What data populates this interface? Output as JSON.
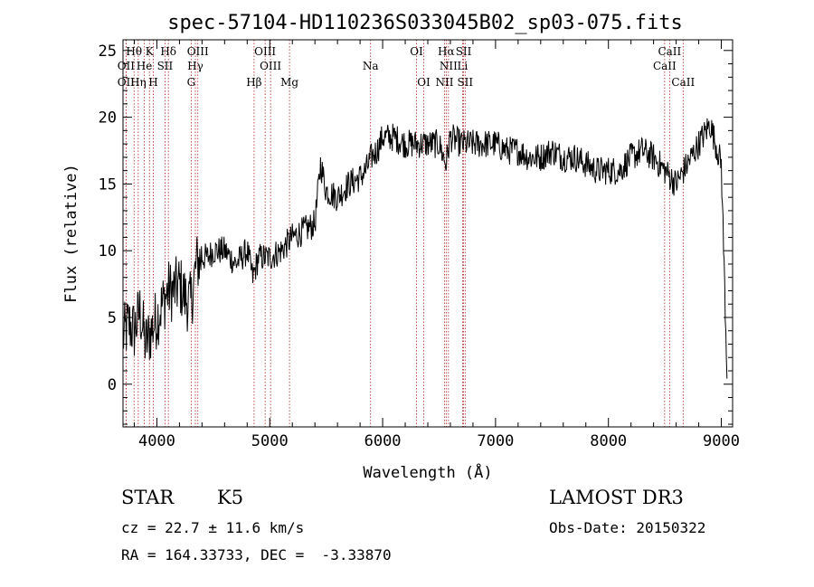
{
  "chart_data": {
    "type": "line",
    "title": "spec-57104-HD110236S033045B02_sp03-075.fits",
    "xlabel": "Wavelength (Å)",
    "ylabel": "Flux (relative)",
    "xlim": [
      3700,
      9100
    ],
    "ylim": [
      -3.2,
      25.8
    ],
    "xticks": [
      4000,
      5000,
      6000,
      7000,
      8000,
      9000
    ],
    "yticks": [
      0,
      5,
      10,
      15,
      20,
      25
    ],
    "series": [
      {
        "name": "spectrum",
        "x": [
          3700,
          3750,
          3800,
          3850,
          3900,
          3950,
          4000,
          4050,
          4100,
          4150,
          4200,
          4250,
          4300,
          4350,
          4400,
          4450,
          4500,
          4600,
          4700,
          4800,
          4850,
          4900,
          5000,
          5100,
          5200,
          5300,
          5400,
          5450,
          5500,
          5600,
          5700,
          5800,
          5850,
          5900,
          5950,
          6000,
          6100,
          6200,
          6300,
          6400,
          6500,
          6560,
          6600,
          6700,
          6800,
          6900,
          7000,
          7100,
          7200,
          7300,
          7400,
          7500,
          7600,
          7700,
          7800,
          7900,
          8000,
          8100,
          8200,
          8300,
          8400,
          8500,
          8600,
          8700,
          8800,
          8900,
          9000,
          9050
        ],
        "y": [
          3.5,
          4.5,
          4.0,
          5.5,
          3.0,
          4.0,
          5.0,
          6.0,
          7.0,
          7.0,
          7.5,
          6.5,
          6.0,
          9.0,
          9.5,
          9.5,
          10.0,
          10.0,
          9.0,
          10.0,
          8.0,
          9.5,
          9.5,
          10.0,
          11.0,
          11.5,
          12.0,
          16.5,
          14.5,
          14.0,
          15.0,
          15.5,
          16.0,
          17.0,
          17.5,
          18.5,
          18.5,
          18.0,
          18.0,
          18.0,
          18.0,
          16.5,
          18.5,
          18.0,
          18.0,
          18.0,
          18.0,
          17.5,
          17.5,
          17.0,
          17.0,
          17.5,
          17.0,
          17.0,
          16.5,
          16.0,
          16.0,
          16.0,
          17.0,
          17.5,
          17.0,
          16.0,
          15.0,
          16.5,
          18.0,
          19.5,
          16.5,
          1.0
        ]
      }
    ],
    "spectral_lines": [
      {
        "name": "Hθ",
        "x": 3798,
        "row": 1
      },
      {
        "name": "K",
        "x": 3934,
        "row": 1
      },
      {
        "name": "Hδ",
        "x": 4102,
        "row": 1
      },
      {
        "name": "OIII",
        "x": 4363,
        "row": 1
      },
      {
        "name": "OIII",
        "x": 4959,
        "row": 1
      },
      {
        "name": "OI",
        "x": 6300,
        "row": 1
      },
      {
        "name": "Hα",
        "x": 6563,
        "row": 1
      },
      {
        "name": "SII",
        "x": 6717,
        "row": 1
      },
      {
        "name": "CaII",
        "x": 8542,
        "row": 1
      },
      {
        "name": "OII",
        "x": 3727,
        "row": 2
      },
      {
        "name": "He",
        "x": 3889,
        "row": 2
      },
      {
        "name": "SII",
        "x": 4072,
        "row": 2
      },
      {
        "name": "Hγ",
        "x": 4341,
        "row": 2
      },
      {
        "name": "OIII",
        "x": 5007,
        "row": 2
      },
      {
        "name": "Na",
        "x": 5893,
        "row": 2
      },
      {
        "name": "NII",
        "x": 6583,
        "row": 2
      },
      {
        "name": "Li",
        "x": 6708,
        "row": 2
      },
      {
        "name": "CaII",
        "x": 8498,
        "row": 2
      },
      {
        "name": "OII",
        "x": 3727,
        "row": 3
      },
      {
        "name": "Hη",
        "x": 3835,
        "row": 3
      },
      {
        "name": "H",
        "x": 3968,
        "row": 3
      },
      {
        "name": "G",
        "x": 4304,
        "row": 3
      },
      {
        "name": "Hβ",
        "x": 4861,
        "row": 3
      },
      {
        "name": "Mg",
        "x": 5175,
        "row": 3
      },
      {
        "name": "OI",
        "x": 6364,
        "row": 3
      },
      {
        "name": "NII",
        "x": 6548,
        "row": 3
      },
      {
        "name": "SII",
        "x": 6731,
        "row": 3
      },
      {
        "name": "CaII",
        "x": 8662,
        "row": 3
      }
    ]
  },
  "info": {
    "object_class": "STAR",
    "subclass": "K5",
    "survey": "LAMOST DR3",
    "redshift": "cz = 22.7 ± 11.6 km/s",
    "obs_date": "Obs-Date: 20150322",
    "coords": "RA = 164.33733, DEC =  -3.33870"
  },
  "colors": {
    "line_marker": "#b22222",
    "spectrum": "#000000"
  }
}
